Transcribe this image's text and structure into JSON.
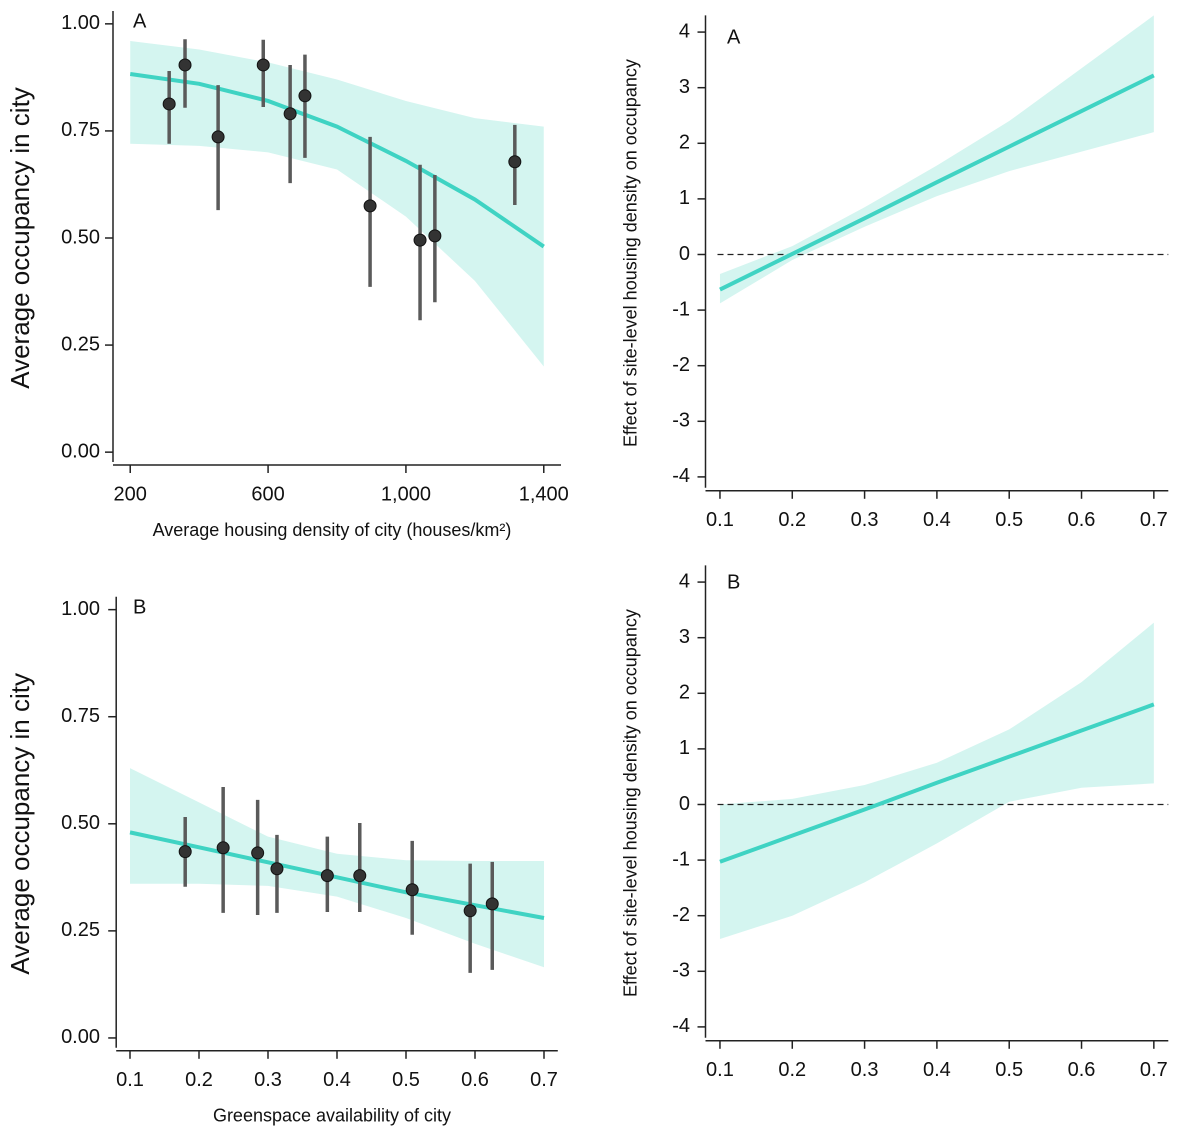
{
  "chart_data": [
    {
      "type": "scatter",
      "panel_label": "A",
      "xlabel": "Average housing density of city (houses/km²)",
      "ylabel": "Average occupancy in city",
      "xlim": [
        150,
        1450
      ],
      "ylim": [
        -0.03,
        1.03
      ],
      "xticks": [
        200,
        600,
        {
          "value": 1000,
          "label": "1,000"
        },
        {
          "value": 1400,
          "label": "1,400"
        }
      ],
      "yticks": [
        {
          "value": 0,
          "label": "0.00"
        },
        {
          "value": 0.25,
          "label": "0.25"
        },
        {
          "value": 0.5,
          "label": "0.50"
        },
        {
          "value": 0.75,
          "label": "0.75"
        },
        {
          "value": 1,
          "label": "1.00"
        }
      ],
      "x": [
        313,
        359,
        455,
        586,
        664,
        707,
        896,
        1041,
        1084,
        1316
      ],
      "values": [
        0.813,
        0.904,
        0.736,
        0.904,
        0.79,
        0.832,
        0.575,
        0.495,
        0.505,
        0.678
      ],
      "lower": [
        0.72,
        0.804,
        0.565,
        0.806,
        0.628,
        0.687,
        0.386,
        0.308,
        0.35,
        0.577
      ],
      "upper": [
        0.89,
        0.964,
        0.857,
        0.963,
        0.904,
        0.928,
        0.736,
        0.671,
        0.647,
        0.764
      ],
      "point_color": "#333333",
      "error_color": "#5a5a5a",
      "fit": {
        "x": [
          200,
          400,
          600,
          800,
          1000,
          1200,
          1400
        ],
        "values": [
          0.883,
          0.86,
          0.82,
          0.76,
          0.68,
          0.59,
          0.48
        ],
        "lower": [
          0.72,
          0.715,
          0.7,
          0.66,
          0.55,
          0.4,
          0.2
        ],
        "upper": [
          0.96,
          0.94,
          0.91,
          0.87,
          0.82,
          0.78,
          0.76
        ],
        "color": "#3fd3c3",
        "band_color": "#d4f5f0"
      }
    },
    {
      "type": "line",
      "panel_label": "A",
      "ylabel": "Effect of site-level housing density on occupancy",
      "xlim": [
        0.08,
        0.72
      ],
      "ylim": [
        -4.25,
        4.3
      ],
      "xticks": [
        0.1,
        0.2,
        0.3,
        0.4,
        0.5,
        0.6,
        0.7
      ],
      "yticks": [
        -4,
        -3,
        -2,
        -1,
        0,
        1,
        2,
        3,
        4
      ],
      "reference_line": 0,
      "x": [
        0.1,
        0.2,
        0.3,
        0.4,
        0.5,
        0.6,
        0.7
      ],
      "values": [
        -0.63,
        0.01,
        0.65,
        1.3,
        1.94,
        2.58,
        3.22
      ],
      "lower": [
        -0.88,
        -0.1,
        0.5,
        1.05,
        1.5,
        1.85,
        2.2
      ],
      "upper": [
        -0.35,
        0.15,
        0.85,
        1.6,
        2.4,
        3.35,
        4.3
      ],
      "color": "#3fd3c3",
      "band_color": "#d4f5f0"
    },
    {
      "type": "scatter",
      "panel_label": "B",
      "xlabel": "Greenspace availability of city",
      "ylabel": "Average occupancy in city",
      "xlim": [
        0.08,
        0.72
      ],
      "ylim": [
        -0.03,
        1.03
      ],
      "xticks": [
        0.1,
        0.2,
        0.3,
        0.4,
        0.5,
        0.6,
        0.7
      ],
      "yticks": [
        {
          "value": 0,
          "label": "0.00"
        },
        {
          "value": 0.25,
          "label": "0.25"
        },
        {
          "value": 0.5,
          "label": "0.50"
        },
        {
          "value": 0.75,
          "label": "0.75"
        },
        {
          "value": 1,
          "label": "1.00"
        }
      ],
      "x": [
        0.18,
        0.235,
        0.285,
        0.313,
        0.386,
        0.433,
        0.509,
        0.593,
        0.625
      ],
      "values": [
        0.435,
        0.444,
        0.432,
        0.395,
        0.379,
        0.379,
        0.346,
        0.297,
        0.313
      ],
      "lower": [
        0.353,
        0.292,
        0.287,
        0.292,
        0.294,
        0.294,
        0.241,
        0.152,
        0.159
      ],
      "upper": [
        0.516,
        0.586,
        0.556,
        0.474,
        0.47,
        0.502,
        0.46,
        0.407,
        0.411
      ],
      "point_color": "#333333",
      "error_color": "#5a5a5a",
      "fit": {
        "x": [
          0.1,
          0.2,
          0.3,
          0.4,
          0.5,
          0.6,
          0.7
        ],
        "values": [
          0.48,
          0.445,
          0.41,
          0.375,
          0.34,
          0.31,
          0.28
        ],
        "lower": [
          0.36,
          0.36,
          0.355,
          0.33,
          0.28,
          0.22,
          0.165
        ],
        "upper": [
          0.63,
          0.55,
          0.47,
          0.43,
          0.415,
          0.413,
          0.413
        ],
        "color": "#3fd3c3",
        "band_color": "#d4f5f0"
      }
    },
    {
      "type": "line",
      "panel_label": "B",
      "ylabel": "Effect of site-level housing density on occupancy",
      "xlim": [
        0.08,
        0.72
      ],
      "ylim": [
        -4.25,
        4.3
      ],
      "xticks": [
        0.1,
        0.2,
        0.3,
        0.4,
        0.5,
        0.6,
        0.7
      ],
      "yticks": [
        -4,
        -3,
        -2,
        -1,
        0,
        1,
        2,
        3,
        4
      ],
      "reference_line": 0,
      "x": [
        0.1,
        0.2,
        0.3,
        0.4,
        0.5,
        0.6,
        0.7
      ],
      "values": [
        -1.03,
        -0.56,
        -0.09,
        0.39,
        0.86,
        1.33,
        1.8
      ],
      "lower": [
        -2.42,
        -2.0,
        -1.4,
        -0.7,
        0.05,
        0.3,
        0.38
      ],
      "upper": [
        0.0,
        0.1,
        0.35,
        0.75,
        1.35,
        2.2,
        3.27
      ],
      "color": "#3fd3c3",
      "band_color": "#d4f5f0"
    }
  ]
}
